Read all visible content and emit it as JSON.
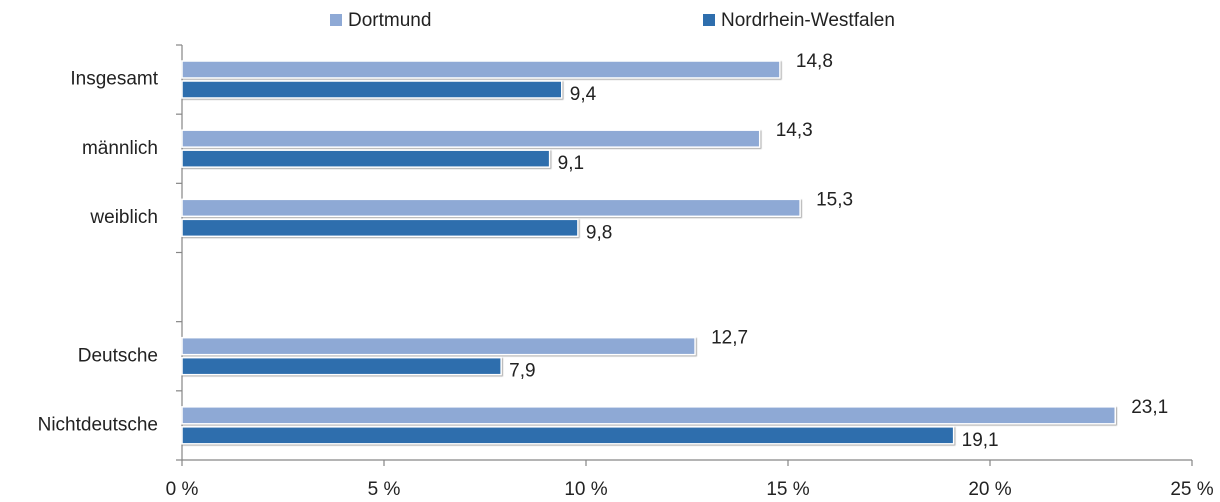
{
  "chart_data": {
    "type": "hbar",
    "categories": [
      "Insgesamt",
      "männlich",
      "weiblich",
      null,
      "Deutsche",
      "Nichtdeutsche"
    ],
    "series": [
      {
        "name": "Dortmund",
        "color": "#8ea9d5",
        "values": [
          14.8,
          14.3,
          15.3,
          null,
          12.7,
          23.1
        ],
        "value_labels": [
          "14,8",
          "14,3",
          "15,3",
          null,
          "12,7",
          "23,1"
        ]
      },
      {
        "name": "Nordrhein-Westfalen",
        "color": "#2e6ead",
        "values": [
          9.4,
          9.1,
          9.8,
          null,
          7.9,
          19.1
        ],
        "value_labels": [
          "9,4",
          "9,1",
          "9,8",
          null,
          "7,9",
          "19,1"
        ]
      }
    ],
    "xlim": [
      0,
      25
    ],
    "xticks": [
      {
        "value": 0,
        "label": "0 %"
      },
      {
        "value": 5,
        "label": "5 %"
      },
      {
        "value": 10,
        "label": "10 %"
      },
      {
        "value": 15,
        "label": "15 %"
      },
      {
        "value": 20,
        "label": "20 %"
      },
      {
        "value": 25,
        "label": "25 %"
      }
    ],
    "legend": "top"
  }
}
